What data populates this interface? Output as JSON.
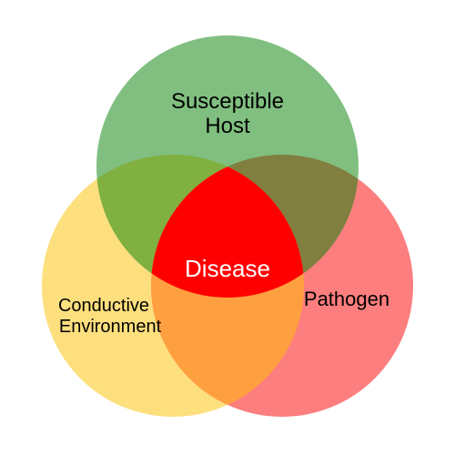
{
  "diagram": {
    "circles": {
      "host": {
        "label_lines": [
          "Susceptible",
          "Host"
        ],
        "color": "#80bf80"
      },
      "environment": {
        "label_lines": [
          "Conductive",
          "Environment"
        ],
        "color": "#fddf7e"
      },
      "pathogen": {
        "label": "Pathogen",
        "color": "#fd7e7e"
      }
    },
    "overlaps": {
      "host_environment": "#80b040",
      "host_pathogen": "#807f40",
      "environment_pathogen": "#ffa040",
      "center": "#ff0000"
    },
    "center_label": "Disease",
    "center_label_color": "#ffffff",
    "label_color": "#000000"
  }
}
